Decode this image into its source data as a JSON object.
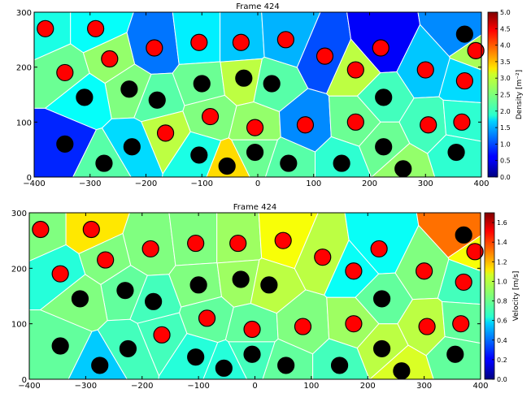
{
  "chart_data": [
    {
      "type": "voronoi",
      "title": "Frame 424",
      "xlim": [
        -400,
        400
      ],
      "ylim": [
        0,
        300
      ],
      "xticks": [
        "−400",
        "−300",
        "−200",
        "−100",
        "0",
        "100",
        "200",
        "300",
        "400"
      ],
      "yticks": [
        "0",
        "100",
        "200",
        "300"
      ],
      "colorbar": {
        "label": "Density [m⁻²]",
        "min": 0.0,
        "max": 5.0,
        "ticks": [
          "0.0",
          "0.5",
          "1.0",
          "1.5",
          "2.0",
          "2.5",
          "3.0",
          "3.5",
          "4.0",
          "4.5",
          "5.0"
        ]
      },
      "agents": [
        {
          "x": -380,
          "y": 270,
          "group": "red",
          "value": 2.0
        },
        {
          "x": -290,
          "y": 270,
          "group": "red",
          "value": 1.9
        },
        {
          "x": -185,
          "y": 235,
          "group": "red",
          "value": 1.2
        },
        {
          "x": -105,
          "y": 245,
          "group": "red",
          "value": 1.8
        },
        {
          "x": -30,
          "y": 245,
          "group": "red",
          "value": 1.6
        },
        {
          "x": 50,
          "y": 250,
          "group": "red",
          "value": 1.5
        },
        {
          "x": 120,
          "y": 220,
          "group": "red",
          "value": 1.0
        },
        {
          "x": 220,
          "y": 235,
          "group": "red",
          "value": 0.6
        },
        {
          "x": 370,
          "y": 260,
          "group": "black",
          "value": 1.3
        },
        {
          "x": 390,
          "y": 230,
          "group": "red",
          "value": 2.7
        },
        {
          "x": -345,
          "y": 190,
          "group": "red",
          "value": 2.4
        },
        {
          "x": -265,
          "y": 215,
          "group": "red",
          "value": 2.6
        },
        {
          "x": -230,
          "y": 160,
          "group": "black",
          "value": 2.5
        },
        {
          "x": -180,
          "y": 140,
          "group": "black",
          "value": 2.3
        },
        {
          "x": -100,
          "y": 170,
          "group": "black",
          "value": 2.4
        },
        {
          "x": -25,
          "y": 180,
          "group": "black",
          "value": 2.8
        },
        {
          "x": 25,
          "y": 170,
          "group": "black",
          "value": 2.3
        },
        {
          "x": 175,
          "y": 195,
          "group": "red",
          "value": 2.8
        },
        {
          "x": 300,
          "y": 195,
          "group": "red",
          "value": 1.6
        },
        {
          "x": 370,
          "y": 175,
          "group": "red",
          "value": 1.7
        },
        {
          "x": -310,
          "y": 145,
          "group": "black",
          "value": 1.9
        },
        {
          "x": -85,
          "y": 110,
          "group": "red",
          "value": 2.5
        },
        {
          "x": -165,
          "y": 80,
          "group": "red",
          "value": 2.8
        },
        {
          "x": -5,
          "y": 90,
          "group": "red",
          "value": 2.6
        },
        {
          "x": 85,
          "y": 95,
          "group": "red",
          "value": 1.3
        },
        {
          "x": 175,
          "y": 100,
          "group": "red",
          "value": 2.4
        },
        {
          "x": 225,
          "y": 145,
          "group": "black",
          "value": 2.2
        },
        {
          "x": 305,
          "y": 95,
          "group": "red",
          "value": 2.2
        },
        {
          "x": 365,
          "y": 100,
          "group": "red",
          "value": 2.1
        },
        {
          "x": -345,
          "y": 60,
          "group": "black",
          "value": 0.8
        },
        {
          "x": -225,
          "y": 55,
          "group": "black",
          "value": 1.7
        },
        {
          "x": -105,
          "y": 40,
          "group": "black",
          "value": 2.0
        },
        {
          "x": -275,
          "y": 25,
          "group": "black",
          "value": 2.3
        },
        {
          "x": -55,
          "y": 20,
          "group": "black",
          "value": 3.3
        },
        {
          "x": -5,
          "y": 45,
          "group": "black",
          "value": 2.4
        },
        {
          "x": 55,
          "y": 25,
          "group": "black",
          "value": 2.3
        },
        {
          "x": 150,
          "y": 25,
          "group": "black",
          "value": 2.1
        },
        {
          "x": 225,
          "y": 55,
          "group": "black",
          "value": 2.4
        },
        {
          "x": 260,
          "y": 15,
          "group": "black",
          "value": 2.6
        },
        {
          "x": 355,
          "y": 45,
          "group": "black",
          "value": 2.1
        }
      ]
    },
    {
      "type": "voronoi",
      "title": "Frame 424",
      "xlim": [
        -400,
        400
      ],
      "ylim": [
        0,
        300
      ],
      "xticks": [
        "−400",
        "−300",
        "−200",
        "−100",
        "0",
        "100",
        "200",
        "300",
        "400"
      ],
      "yticks": [
        "0",
        "100",
        "200",
        "300"
      ],
      "colorbar": {
        "label": "Velocity [m/s]",
        "min": 0.0,
        "max": 1.7,
        "ticks": [
          "0.0",
          "0.2",
          "0.4",
          "0.6",
          "0.8",
          "1.0",
          "1.2",
          "1.4",
          "1.6"
        ]
      },
      "agents": [
        {
          "x": -380,
          "y": 270,
          "group": "red",
          "value": 0.85
        },
        {
          "x": -290,
          "y": 270,
          "group": "red",
          "value": 1.1
        },
        {
          "x": -185,
          "y": 235,
          "group": "red",
          "value": 0.85
        },
        {
          "x": -105,
          "y": 245,
          "group": "red",
          "value": 0.85
        },
        {
          "x": -30,
          "y": 245,
          "group": "red",
          "value": 0.9
        },
        {
          "x": 50,
          "y": 250,
          "group": "red",
          "value": 1.05
        },
        {
          "x": 120,
          "y": 220,
          "group": "red",
          "value": 0.95
        },
        {
          "x": 220,
          "y": 235,
          "group": "red",
          "value": 0.65
        },
        {
          "x": 370,
          "y": 260,
          "group": "black",
          "value": 1.3
        },
        {
          "x": 390,
          "y": 230,
          "group": "red",
          "value": 1.05
        },
        {
          "x": -345,
          "y": 190,
          "group": "red",
          "value": 0.7
        },
        {
          "x": -265,
          "y": 215,
          "group": "red",
          "value": 0.85
        },
        {
          "x": -230,
          "y": 160,
          "group": "black",
          "value": 0.8
        },
        {
          "x": -180,
          "y": 140,
          "group": "black",
          "value": 0.75
        },
        {
          "x": -100,
          "y": 170,
          "group": "black",
          "value": 0.85
        },
        {
          "x": -25,
          "y": 180,
          "group": "black",
          "value": 0.9
        },
        {
          "x": 25,
          "y": 170,
          "group": "black",
          "value": 0.95
        },
        {
          "x": 175,
          "y": 195,
          "group": "red",
          "value": 0.65
        },
        {
          "x": 300,
          "y": 195,
          "group": "red",
          "value": 0.85
        },
        {
          "x": 370,
          "y": 175,
          "group": "red",
          "value": 0.75
        },
        {
          "x": -310,
          "y": 145,
          "group": "black",
          "value": 0.85
        },
        {
          "x": -85,
          "y": 110,
          "group": "red",
          "value": 0.8
        },
        {
          "x": -165,
          "y": 80,
          "group": "red",
          "value": 0.75
        },
        {
          "x": -5,
          "y": 90,
          "group": "red",
          "value": 0.8
        },
        {
          "x": 85,
          "y": 95,
          "group": "red",
          "value": 0.85
        },
        {
          "x": 175,
          "y": 100,
          "group": "red",
          "value": 0.9
        },
        {
          "x": 225,
          "y": 145,
          "group": "black",
          "value": 0.8
        },
        {
          "x": 305,
          "y": 95,
          "group": "red",
          "value": 0.95
        },
        {
          "x": 365,
          "y": 100,
          "group": "red",
          "value": 0.8
        },
        {
          "x": -345,
          "y": 60,
          "group": "black",
          "value": 0.8
        },
        {
          "x": -225,
          "y": 55,
          "group": "black",
          "value": 0.75
        },
        {
          "x": -105,
          "y": 40,
          "group": "black",
          "value": 0.7
        },
        {
          "x": -275,
          "y": 25,
          "group": "black",
          "value": 0.55
        },
        {
          "x": -55,
          "y": 20,
          "group": "black",
          "value": 0.7
        },
        {
          "x": -5,
          "y": 45,
          "group": "black",
          "value": 0.75
        },
        {
          "x": 55,
          "y": 25,
          "group": "black",
          "value": 0.8
        },
        {
          "x": 150,
          "y": 25,
          "group": "black",
          "value": 0.75
        },
        {
          "x": 225,
          "y": 55,
          "group": "black",
          "value": 0.95
        },
        {
          "x": 260,
          "y": 15,
          "group": "black",
          "value": 1.0
        },
        {
          "x": 355,
          "y": 45,
          "group": "black",
          "value": 0.8
        }
      ]
    }
  ],
  "colors": {
    "red_agent": "#ff0000",
    "black_agent": "#000000",
    "cell_edge": "#ffffff"
  }
}
